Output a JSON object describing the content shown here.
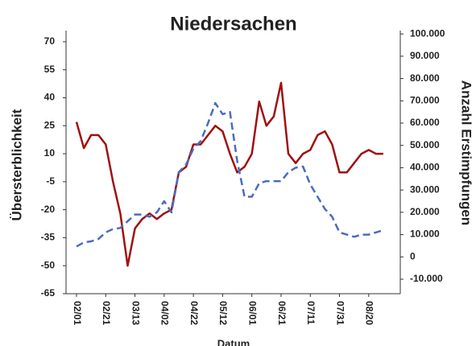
{
  "chart_data": {
    "type": "line",
    "title": "Niedersachen",
    "x_label": "Datum",
    "y_label": "Übersterblichkeit",
    "y2_label": "Anzahl Erstimpfungen",
    "categories": [
      "02/01",
      null,
      null,
      null,
      "02/21",
      null,
      null,
      null,
      "03/13",
      null,
      null,
      null,
      "04/02",
      null,
      null,
      null,
      "04/22",
      null,
      null,
      null,
      "05/12",
      null,
      null,
      null,
      "06/01",
      null,
      null,
      null,
      "06/21",
      null,
      null,
      null,
      "07/11",
      null,
      null,
      null,
      "07/31",
      null,
      null,
      null,
      "08/20",
      null,
      null
    ],
    "series": [
      {
        "name": "Übersterblichkeit",
        "color": "#a01010",
        "dashed": false,
        "values": [
          27,
          13,
          20,
          20,
          15,
          -5,
          -22,
          -50,
          -30,
          -25,
          -22,
          -25,
          -22,
          -20,
          0,
          3,
          15,
          15,
          20,
          25,
          22,
          10,
          0,
          3,
          10,
          38,
          25,
          30,
          48,
          10,
          5,
          10,
          12,
          20,
          22,
          15,
          0,
          0,
          5,
          10,
          12,
          10,
          10
        ]
      },
      {
        "name": "Anzahl Erstimpfungen",
        "color": "#4a6cbf",
        "dashed": true,
        "axis": "y2",
        "values": [
          4700,
          6500,
          7000,
          8000,
          11000,
          12500,
          13000,
          16000,
          19000,
          19000,
          18000,
          20000,
          25000,
          20000,
          38000,
          41500,
          48500,
          52000,
          60000,
          69000,
          64000,
          65000,
          43000,
          27000,
          27000,
          33000,
          34000,
          34000,
          34000,
          38000,
          40000,
          40500,
          32500,
          27000,
          21500,
          18000,
          11000,
          10000,
          9000,
          10000,
          10000,
          11000,
          12000
        ]
      }
    ],
    "ylim": [
      -65,
      76
    ],
    "yticks": [
      70,
      55,
      40,
      25,
      10,
      -5,
      -20,
      -35,
      -50,
      -65
    ],
    "y2lim": [
      -16500,
      101500
    ],
    "y2ticks": [
      {
        "value": 100000,
        "label": "100.000"
      },
      {
        "value": 90000,
        "label": "90.000"
      },
      {
        "value": 80000,
        "label": "80.000"
      },
      {
        "value": 70000,
        "label": "70.000"
      },
      {
        "value": 60000,
        "label": "60.000"
      },
      {
        "value": 50000,
        "label": "50.000"
      },
      {
        "value": 40000,
        "label": "40.000"
      },
      {
        "value": 30000,
        "label": "30.000"
      },
      {
        "value": 20000,
        "label": "20.000"
      },
      {
        "value": 10000,
        "label": "10.000"
      },
      0,
      {
        "value": -10000,
        "label": "-10.000"
      }
    ],
    "grid": false
  }
}
